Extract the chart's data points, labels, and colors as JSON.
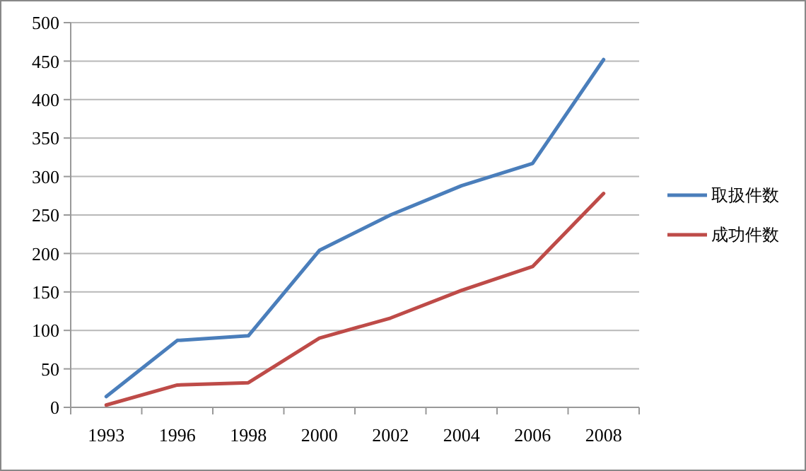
{
  "chart_data": {
    "type": "line",
    "categories": [
      "1993",
      "1996",
      "1998",
      "2000",
      "2002",
      "2004",
      "2006",
      "2008"
    ],
    "series": [
      {
        "name": "取扱件数",
        "color": "#4a7ebb",
        "values": [
          14,
          87,
          93,
          204,
          250,
          288,
          317,
          452
        ]
      },
      {
        "name": "成功件数",
        "color": "#be4b48",
        "values": [
          3,
          29,
          32,
          90,
          116,
          152,
          183,
          278
        ]
      }
    ],
    "ylim": [
      0,
      500
    ],
    "yticks": [
      0,
      50,
      100,
      150,
      200,
      250,
      300,
      350,
      400,
      450,
      500
    ],
    "grid": "y",
    "legend": "right",
    "marker": "none",
    "line_style": "solid"
  }
}
